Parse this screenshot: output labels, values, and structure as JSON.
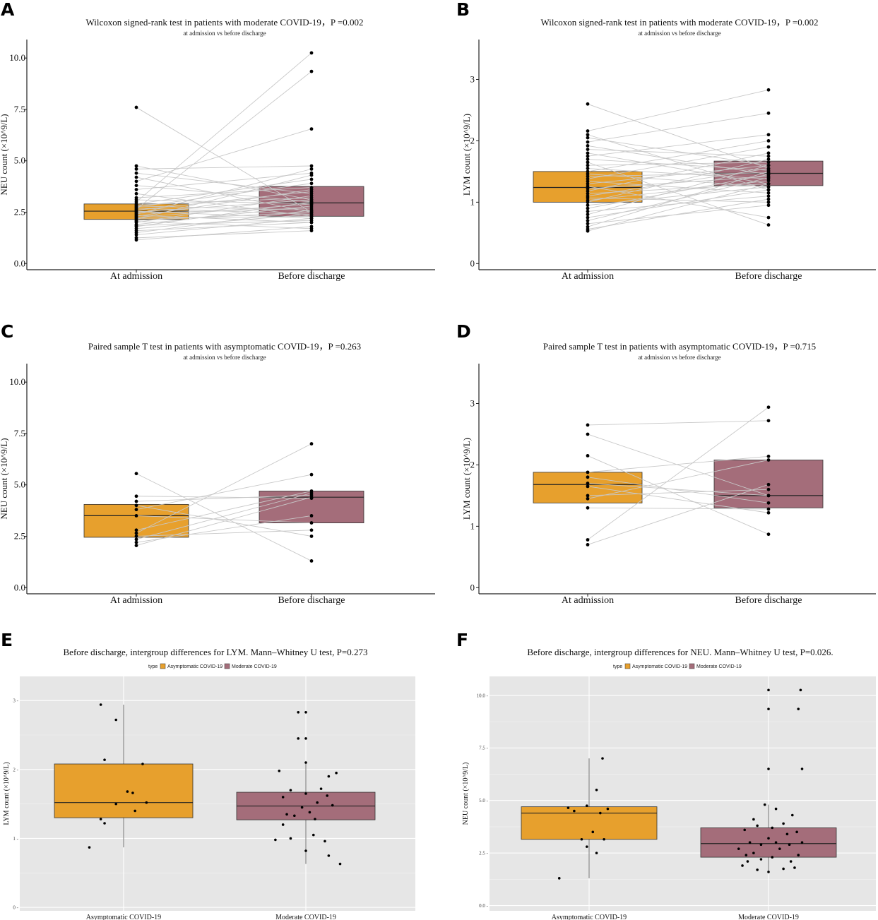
{
  "colors": {
    "asymptomatic": "#E7A02D",
    "moderate": "#A46D7A",
    "pairline": "#c8c8c8",
    "panelbg": "#e6e6e6"
  },
  "chart_data": [
    {
      "type": "box",
      "letter": "A",
      "title": "Wilcoxon signed-rank test in patients with moderate COVID-19，P =0.002",
      "subtitle": "at admission vs before discharge",
      "ylabel": "NEU count (×10^9/L)",
      "ylim": [
        -0.3,
        10.9
      ],
      "yticks": [
        0,
        2.5,
        5,
        7.5,
        10
      ],
      "ytick_labels": [
        "0.0",
        "2.5",
        "5.0",
        "7.5",
        "10.0"
      ],
      "categories": [
        "At admission",
        "Before discharge"
      ],
      "boxes": [
        {
          "group": "At admission",
          "q1": 2.15,
          "median": 2.55,
          "q3": 2.9,
          "fill": "asymptomatic"
        },
        {
          "group": "Before discharge",
          "q1": 2.3,
          "median": 2.95,
          "q3": 3.75,
          "fill": "moderate"
        }
      ],
      "paired": [
        [
          1.15,
          1.8
        ],
        [
          1.25,
          1.6
        ],
        [
          1.4,
          2.2
        ],
        [
          1.5,
          2.6
        ],
        [
          1.6,
          2.0
        ],
        [
          1.7,
          2.4
        ],
        [
          1.8,
          3.0
        ],
        [
          1.85,
          2.1
        ],
        [
          1.9,
          2.8
        ],
        [
          2.0,
          3.3
        ],
        [
          2.05,
          1.7
        ],
        [
          2.1,
          2.5
        ],
        [
          2.15,
          4.3
        ],
        [
          2.2,
          2.3
        ],
        [
          2.25,
          2.9
        ],
        [
          2.3,
          3.6
        ],
        [
          2.35,
          2.0
        ],
        [
          2.4,
          4.6
        ],
        [
          2.45,
          2.7
        ],
        [
          2.5,
          3.1
        ],
        [
          2.55,
          2.2
        ],
        [
          2.6,
          3.5
        ],
        [
          2.65,
          9.35
        ],
        [
          2.7,
          2.4
        ],
        [
          2.75,
          3.9
        ],
        [
          2.8,
          2.6
        ],
        [
          2.85,
          3.2
        ],
        [
          2.9,
          4.1
        ],
        [
          3.0,
          10.25
        ],
        [
          3.1,
          2.9
        ],
        [
          3.2,
          3.7
        ],
        [
          3.4,
          2.3
        ],
        [
          3.6,
          4.4
        ],
        [
          3.8,
          3.0
        ],
        [
          4.0,
          6.55
        ],
        [
          4.2,
          2.5
        ],
        [
          4.4,
          3.4
        ],
        [
          4.6,
          4.75
        ],
        [
          4.75,
          3.1
        ],
        [
          7.6,
          2.5
        ]
      ],
      "style": "classic"
    },
    {
      "type": "box",
      "letter": "B",
      "title": "Wilcoxon signed-rank test in patients with moderate COVID-19，P =0.002",
      "subtitle": "at admission vs before discharge",
      "ylabel": "LYM count (×10^9/L)",
      "ylim": [
        -0.1,
        3.65
      ],
      "yticks": [
        0,
        1,
        2,
        3
      ],
      "ytick_labels": [
        "0",
        "1",
        "2",
        "3"
      ],
      "categories": [
        "At admission",
        "Before discharge"
      ],
      "boxes": [
        {
          "group": "At admission",
          "q1": 1.0,
          "median": 1.24,
          "q3": 1.5,
          "fill": "asymptomatic"
        },
        {
          "group": "Before discharge",
          "q1": 1.27,
          "median": 1.47,
          "q3": 1.67,
          "fill": "moderate"
        }
      ],
      "paired": [
        [
          0.53,
          1.3
        ],
        [
          0.56,
          1.05
        ],
        [
          0.6,
          1.5
        ],
        [
          0.65,
          0.95
        ],
        [
          0.7,
          1.4
        ],
        [
          0.75,
          1.2
        ],
        [
          0.8,
          1.6
        ],
        [
          0.85,
          1.1
        ],
        [
          0.9,
          1.45
        ],
        [
          0.95,
          1.25
        ],
        [
          1.0,
          1.7
        ],
        [
          1.03,
          1.35
        ],
        [
          1.07,
          1.0
        ],
        [
          1.1,
          1.55
        ],
        [
          1.14,
          1.3
        ],
        [
          1.18,
          1.8
        ],
        [
          1.22,
          1.42
        ],
        [
          1.26,
          0.75
        ],
        [
          1.3,
          1.6
        ],
        [
          1.34,
          1.15
        ],
        [
          1.38,
          1.9
        ],
        [
          1.42,
          1.48
        ],
        [
          1.46,
          1.25
        ],
        [
          1.5,
          2.0
        ],
        [
          1.55,
          1.38
        ],
        [
          1.6,
          1.65
        ],
        [
          1.65,
          0.63
        ],
        [
          1.7,
          1.52
        ],
        [
          1.75,
          2.1
        ],
        [
          1.8,
          1.3
        ],
        [
          1.86,
          1.75
        ],
        [
          1.92,
          1.45
        ],
        [
          1.98,
          2.45
        ],
        [
          2.05,
          1.6
        ],
        [
          2.1,
          1.2
        ],
        [
          2.16,
          2.83
        ],
        [
          2.6,
          1.55
        ]
      ],
      "style": "classic"
    },
    {
      "type": "box",
      "letter": "C",
      "title": "Paired sample T test in patients with asymptomatic COVID-19，P =0.263",
      "subtitle": "at admission vs before discharge",
      "ylabel": "NEU count (×10^9/L)",
      "ylim": [
        -0.3,
        10.9
      ],
      "yticks": [
        0,
        2.5,
        5,
        7.5,
        10
      ],
      "ytick_labels": [
        "0.0",
        "2.5",
        "5.0",
        "7.5",
        "10.0"
      ],
      "categories": [
        "At admission",
        "Before discharge"
      ],
      "boxes": [
        {
          "group": "At admission",
          "q1": 2.45,
          "median": 3.5,
          "q3": 4.05,
          "fill": "asymptomatic"
        },
        {
          "group": "Before discharge",
          "q1": 3.15,
          "median": 4.4,
          "q3": 4.7,
          "fill": "moderate"
        }
      ],
      "paired": [
        [
          2.05,
          4.4
        ],
        [
          2.2,
          3.5
        ],
        [
          2.35,
          4.6
        ],
        [
          2.5,
          2.8
        ],
        [
          2.65,
          7.0
        ],
        [
          2.8,
          4.7
        ],
        [
          3.5,
          3.15
        ],
        [
          3.8,
          5.5
        ],
        [
          4.0,
          2.5
        ],
        [
          4.2,
          4.5
        ],
        [
          4.45,
          4.35
        ],
        [
          5.55,
          1.3
        ]
      ],
      "style": "classic"
    },
    {
      "type": "box",
      "letter": "D",
      "title": "Paired sample T test in patients with asymptomatic COVID-19，P =0.715",
      "subtitle": "at admission vs before discharge",
      "ylabel": "LYM count (×10^9/L)",
      "ylim": [
        -0.1,
        3.65
      ],
      "yticks": [
        0,
        1,
        2,
        3
      ],
      "ytick_labels": [
        "0",
        "1",
        "2",
        "3"
      ],
      "categories": [
        "At admission",
        "Before discharge"
      ],
      "boxes": [
        {
          "group": "At admission",
          "q1": 1.38,
          "median": 1.68,
          "q3": 1.88,
          "fill": "asymptomatic"
        },
        {
          "group": "Before discharge",
          "q1": 1.3,
          "median": 1.5,
          "q3": 2.08,
          "fill": "moderate"
        }
      ],
      "paired": [
        [
          0.7,
          1.68
        ],
        [
          0.78,
          2.94
        ],
        [
          1.3,
          1.28
        ],
        [
          1.45,
          2.08
        ],
        [
          1.5,
          1.6
        ],
        [
          1.65,
          1.22
        ],
        [
          1.7,
          1.5
        ],
        [
          1.8,
          1.38
        ],
        [
          1.88,
          2.14
        ],
        [
          2.15,
          0.87
        ],
        [
          2.5,
          1.5
        ],
        [
          2.65,
          2.72
        ]
      ],
      "style": "classic"
    },
    {
      "type": "box",
      "letter": "E",
      "title": "Before discharge, intergroup differences for LYM. Mann–Whitney U test, P=0.273",
      "legend_title": "type",
      "legend_labels": [
        "Asymptomatic COVID-19",
        "Moderate COVID-19"
      ],
      "ylabel": "LYM count (×10^9/L)",
      "ylim": [
        -0.05,
        3.35
      ],
      "yticks": [
        0,
        1,
        2,
        3
      ],
      "ytick_labels": [
        "0 -",
        "1 -",
        "2 -",
        "3 -"
      ],
      "categories": [
        "Asymptomatic COVID-19",
        "Moderate COVID-19"
      ],
      "boxes": [
        {
          "group": "Asymptomatic COVID-19",
          "q1": 1.3,
          "median": 1.52,
          "q3": 2.08,
          "whisker_low": 0.87,
          "whisker_high": 2.94,
          "fill": "asymptomatic"
        },
        {
          "group": "Moderate COVID-19",
          "q1": 1.27,
          "median": 1.47,
          "q3": 1.67,
          "whisker_low": 0.63,
          "whisker_high": 2.1,
          "fill": "moderate"
        }
      ],
      "points": [
        {
          "g": 0,
          "dx": -0.45,
          "y": 0.87
        },
        {
          "g": 0,
          "dx": -0.25,
          "y": 1.22
        },
        {
          "g": 0,
          "dx": -0.3,
          "y": 1.28
        },
        {
          "g": 0,
          "dx": 0.15,
          "y": 1.4
        },
        {
          "g": 0,
          "dx": -0.1,
          "y": 1.5
        },
        {
          "g": 0,
          "dx": 0.3,
          "y": 1.52
        },
        {
          "g": 0,
          "dx": 0.05,
          "y": 1.68
        },
        {
          "g": 0,
          "dx": 0.12,
          "y": 1.66
        },
        {
          "g": 0,
          "dx": 0.25,
          "y": 2.08
        },
        {
          "g": 0,
          "dx": -0.25,
          "y": 2.14
        },
        {
          "g": 0,
          "dx": -0.1,
          "y": 2.72
        },
        {
          "g": 0,
          "dx": -0.3,
          "y": 2.94
        },
        {
          "g": 1,
          "dx": -0.4,
          "y": 0.98
        },
        {
          "g": 1,
          "dx": -0.3,
          "y": 1.2
        },
        {
          "g": 1,
          "dx": -0.2,
          "y": 1.0
        },
        {
          "g": 1,
          "dx": 0.1,
          "y": 1.05
        },
        {
          "g": 1,
          "dx": 0.25,
          "y": 0.96
        },
        {
          "g": 1,
          "dx": 0.3,
          "y": 0.75
        },
        {
          "g": 1,
          "dx": 0.45,
          "y": 0.63
        },
        {
          "g": 1,
          "dx": 0.0,
          "y": 0.82
        },
        {
          "g": 1,
          "dx": -0.15,
          "y": 1.33
        },
        {
          "g": 1,
          "dx": -0.05,
          "y": 1.45
        },
        {
          "g": 1,
          "dx": 0.05,
          "y": 1.38
        },
        {
          "g": 1,
          "dx": 0.15,
          "y": 1.52
        },
        {
          "g": 1,
          "dx": 0.35,
          "y": 1.48
        },
        {
          "g": 1,
          "dx": -0.3,
          "y": 1.6
        },
        {
          "g": 1,
          "dx": -0.2,
          "y": 1.7
        },
        {
          "g": 1,
          "dx": 0.0,
          "y": 1.65
        },
        {
          "g": 1,
          "dx": 0.2,
          "y": 1.72
        },
        {
          "g": 1,
          "dx": 0.3,
          "y": 1.9
        },
        {
          "g": 1,
          "dx": -0.35,
          "y": 1.98
        },
        {
          "g": 1,
          "dx": 0.0,
          "y": 2.1
        },
        {
          "g": 1,
          "dx": 0.4,
          "y": 1.95
        },
        {
          "g": 1,
          "dx": -0.1,
          "y": 2.45
        },
        {
          "g": 1,
          "dx": 0.0,
          "y": 2.45
        },
        {
          "g": 1,
          "dx": -0.1,
          "y": 2.83
        },
        {
          "g": 1,
          "dx": 0.0,
          "y": 2.83
        },
        {
          "g": 1,
          "dx": -0.25,
          "y": 1.35
        },
        {
          "g": 1,
          "dx": 0.12,
          "y": 1.28
        },
        {
          "g": 1,
          "dx": 0.28,
          "y": 1.62
        }
      ],
      "style": "gray"
    },
    {
      "type": "box",
      "letter": "F",
      "title": "Before discharge, intergroup differences for NEU. Mann–Whitney U test, P=0.026.",
      "legend_title": "type",
      "legend_labels": [
        "Asymptomatic COVID-19",
        "Moderate COVID-19"
      ],
      "ylabel": "NEU count (×10^9/L)",
      "ylim": [
        -0.25,
        10.9
      ],
      "yticks": [
        0,
        2.5,
        5,
        7.5,
        10
      ],
      "ytick_labels": [
        "0.0 -",
        "2.5 -",
        "5.0 -",
        "7.5 -",
        "10.0 -"
      ],
      "categories": [
        "Asymptomatic COVID-19",
        "Moderate COVID-19"
      ],
      "boxes": [
        {
          "group": "Asymptomatic COVID-19",
          "q1": 3.15,
          "median": 4.4,
          "q3": 4.7,
          "whisker_low": 1.3,
          "whisker_high": 7.0,
          "fill": "asymptomatic"
        },
        {
          "group": "Moderate COVID-19",
          "q1": 2.3,
          "median": 2.95,
          "q3": 3.7,
          "whisker_low": 1.6,
          "whisker_high": 4.8,
          "fill": "moderate"
        }
      ],
      "points": [
        {
          "g": 0,
          "dx": -0.4,
          "y": 1.3
        },
        {
          "g": 0,
          "dx": -0.03,
          "y": 2.8
        },
        {
          "g": 0,
          "dx": 0.1,
          "y": 2.5
        },
        {
          "g": 0,
          "dx": -0.1,
          "y": 3.15
        },
        {
          "g": 0,
          "dx": 0.2,
          "y": 3.15
        },
        {
          "g": 0,
          "dx": 0.05,
          "y": 3.5
        },
        {
          "g": 0,
          "dx": -0.28,
          "y": 4.65
        },
        {
          "g": 0,
          "dx": -0.2,
          "y": 4.5
        },
        {
          "g": 0,
          "dx": 0.25,
          "y": 4.6
        },
        {
          "g": 0,
          "dx": 0.15,
          "y": 4.4
        },
        {
          "g": 0,
          "dx": -0.03,
          "y": 4.75
        },
        {
          "g": 0,
          "dx": 0.1,
          "y": 5.5
        },
        {
          "g": 0,
          "dx": 0.18,
          "y": 7.0
        },
        {
          "g": 1,
          "dx": -0.35,
          "y": 1.9
        },
        {
          "g": 1,
          "dx": -0.28,
          "y": 2.1
        },
        {
          "g": 1,
          "dx": -0.15,
          "y": 1.7
        },
        {
          "g": 1,
          "dx": 0.0,
          "y": 1.6
        },
        {
          "g": 1,
          "dx": 0.2,
          "y": 1.75
        },
        {
          "g": 1,
          "dx": 0.35,
          "y": 1.8
        },
        {
          "g": 1,
          "dx": -0.3,
          "y": 2.4
        },
        {
          "g": 1,
          "dx": -0.2,
          "y": 2.5
        },
        {
          "g": 1,
          "dx": -0.1,
          "y": 2.2
        },
        {
          "g": 1,
          "dx": 0.05,
          "y": 2.3
        },
        {
          "g": 1,
          "dx": 0.15,
          "y": 2.7
        },
        {
          "g": 1,
          "dx": 0.3,
          "y": 2.1
        },
        {
          "g": 1,
          "dx": 0.4,
          "y": 2.4
        },
        {
          "g": 1,
          "dx": -0.25,
          "y": 3.0
        },
        {
          "g": 1,
          "dx": -0.1,
          "y": 2.9
        },
        {
          "g": 1,
          "dx": 0.0,
          "y": 3.2
        },
        {
          "g": 1,
          "dx": 0.1,
          "y": 3.0
        },
        {
          "g": 1,
          "dx": 0.25,
          "y": 3.4
        },
        {
          "g": 1,
          "dx": 0.38,
          "y": 3.5
        },
        {
          "g": 1,
          "dx": -0.32,
          "y": 3.6
        },
        {
          "g": 1,
          "dx": -0.15,
          "y": 3.8
        },
        {
          "g": 1,
          "dx": 0.05,
          "y": 3.7
        },
        {
          "g": 1,
          "dx": 0.2,
          "y": 3.9
        },
        {
          "g": 1,
          "dx": 0.32,
          "y": 4.3
        },
        {
          "g": 1,
          "dx": -0.05,
          "y": 4.8
        },
        {
          "g": 1,
          "dx": 0.1,
          "y": 4.6
        },
        {
          "g": 1,
          "dx": -0.2,
          "y": 4.1
        },
        {
          "g": 1,
          "dx": 0.28,
          "y": 2.9
        },
        {
          "g": 1,
          "dx": -0.4,
          "y": 2.7
        },
        {
          "g": 1,
          "dx": 0.45,
          "y": 3.0
        },
        {
          "g": 1,
          "dx": 0.0,
          "y": 6.5
        },
        {
          "g": 1,
          "dx": 0.45,
          "y": 6.5
        },
        {
          "g": 1,
          "dx": 0.0,
          "y": 9.35
        },
        {
          "g": 1,
          "dx": 0.4,
          "y": 9.35
        },
        {
          "g": 1,
          "dx": 0.0,
          "y": 10.25
        },
        {
          "g": 1,
          "dx": 0.43,
          "y": 10.25
        }
      ],
      "style": "gray"
    }
  ]
}
